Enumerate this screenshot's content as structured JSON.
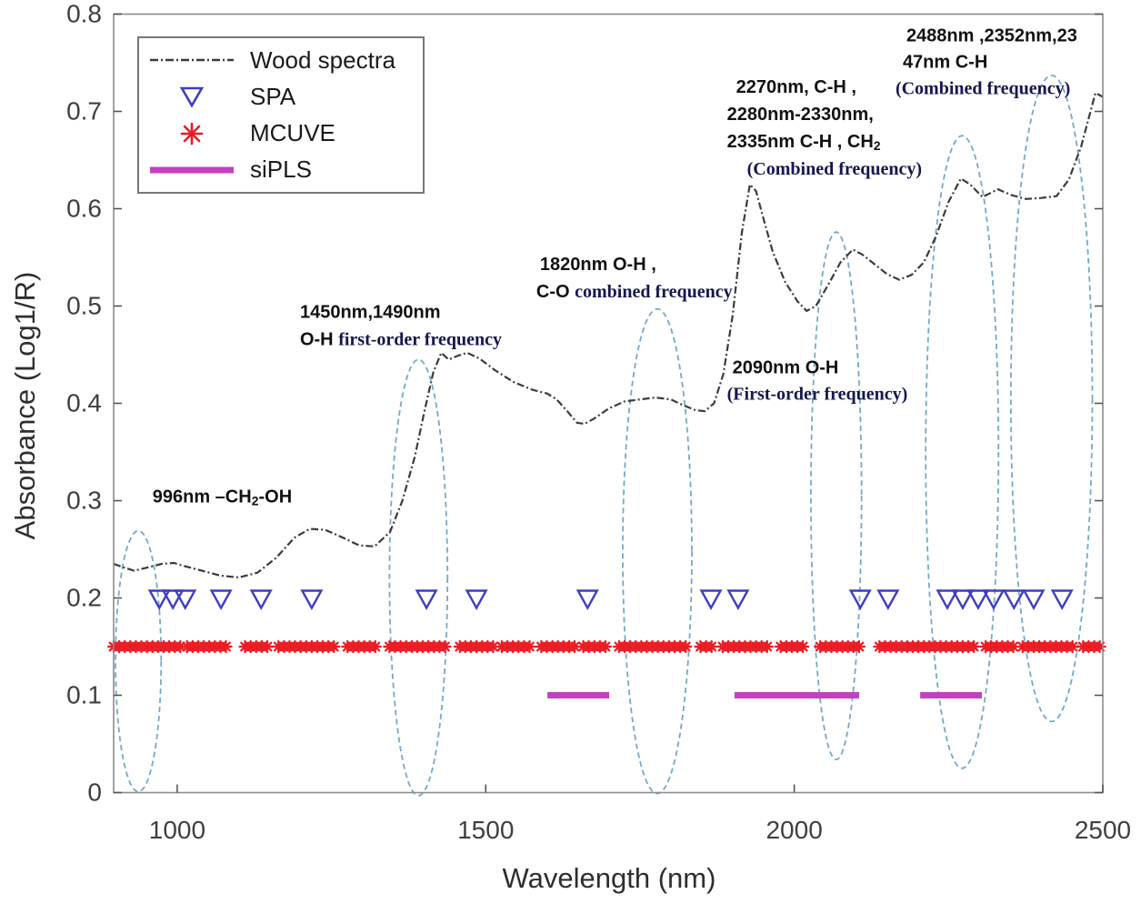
{
  "chart_data": {
    "type": "line",
    "title": "",
    "xlabel": "Wavelength (nm)",
    "ylabel": "Absorbance (Log1/R)",
    "xlim": [
      897,
      2500
    ],
    "ylim": [
      0,
      0.8
    ],
    "xticks": [
      "1000",
      "1500",
      "2000",
      "2500"
    ],
    "yticks": [
      "0",
      "0.1",
      "0.2",
      "0.3",
      "0.4",
      "0.5",
      "0.6",
      "0.7",
      "0.8"
    ],
    "grid": false,
    "legend_position": "top-left",
    "axis_color": "#8c8c8c",
    "tick_label_color": "#3f3f3f",
    "series": [
      {
        "name": "Wood spectra",
        "kind": "line",
        "line_style": "dash-dot",
        "color": "#3b3b3b",
        "points": [
          [
            897,
            0.235
          ],
          [
            915,
            0.231
          ],
          [
            930,
            0.228
          ],
          [
            950,
            0.231
          ],
          [
            975,
            0.235
          ],
          [
            995,
            0.236
          ],
          [
            1010,
            0.233
          ],
          [
            1040,
            0.228
          ],
          [
            1070,
            0.223
          ],
          [
            1100,
            0.221
          ],
          [
            1130,
            0.226
          ],
          [
            1160,
            0.241
          ],
          [
            1190,
            0.262
          ],
          [
            1215,
            0.271
          ],
          [
            1240,
            0.27
          ],
          [
            1265,
            0.263
          ],
          [
            1295,
            0.254
          ],
          [
            1320,
            0.253
          ],
          [
            1345,
            0.268
          ],
          [
            1365,
            0.3
          ],
          [
            1385,
            0.345
          ],
          [
            1400,
            0.39
          ],
          [
            1415,
            0.432
          ],
          [
            1428,
            0.452
          ],
          [
            1440,
            0.445
          ],
          [
            1455,
            0.449
          ],
          [
            1470,
            0.452
          ],
          [
            1490,
            0.446
          ],
          [
            1515,
            0.434
          ],
          [
            1545,
            0.422
          ],
          [
            1575,
            0.414
          ],
          [
            1600,
            0.41
          ],
          [
            1615,
            0.404
          ],
          [
            1632,
            0.392
          ],
          [
            1648,
            0.38
          ],
          [
            1660,
            0.379
          ],
          [
            1675,
            0.384
          ],
          [
            1700,
            0.395
          ],
          [
            1725,
            0.402
          ],
          [
            1750,
            0.404
          ],
          [
            1775,
            0.406
          ],
          [
            1800,
            0.404
          ],
          [
            1820,
            0.398
          ],
          [
            1840,
            0.393
          ],
          [
            1855,
            0.392
          ],
          [
            1870,
            0.4
          ],
          [
            1885,
            0.43
          ],
          [
            1900,
            0.49
          ],
          [
            1915,
            0.575
          ],
          [
            1928,
            0.625
          ],
          [
            1938,
            0.618
          ],
          [
            1950,
            0.59
          ],
          [
            1965,
            0.556
          ],
          [
            1985,
            0.525
          ],
          [
            2005,
            0.505
          ],
          [
            2020,
            0.495
          ],
          [
            2035,
            0.5
          ],
          [
            2055,
            0.522
          ],
          [
            2075,
            0.545
          ],
          [
            2095,
            0.558
          ],
          [
            2110,
            0.553
          ],
          [
            2130,
            0.543
          ],
          [
            2150,
            0.533
          ],
          [
            2170,
            0.527
          ],
          [
            2190,
            0.532
          ],
          [
            2210,
            0.545
          ],
          [
            2230,
            0.572
          ],
          [
            2250,
            0.607
          ],
          [
            2270,
            0.631
          ],
          [
            2285,
            0.625
          ],
          [
            2305,
            0.612
          ],
          [
            2330,
            0.62
          ],
          [
            2352,
            0.614
          ],
          [
            2375,
            0.61
          ],
          [
            2400,
            0.611
          ],
          [
            2425,
            0.613
          ],
          [
            2445,
            0.63
          ],
          [
            2465,
            0.664
          ],
          [
            2488,
            0.719
          ],
          [
            2500,
            0.715
          ]
        ]
      },
      {
        "name": "SPA",
        "kind": "triangle-markers",
        "color": "#3e3ec1",
        "marker_y": 0.2,
        "x_values": [
          971,
          993,
          1013,
          1071,
          1136,
          1218,
          1404,
          1485,
          1665,
          1865,
          1909,
          2107,
          2152,
          2248,
          2273,
          2298,
          2323,
          2356,
          2388,
          2434
        ]
      },
      {
        "name": "MCUVE",
        "kind": "asterisk-band",
        "color": "#ea1c24",
        "band_y": 0.15,
        "segments_nm": [
          [
            897,
            1008
          ],
          [
            1016,
            1086
          ],
          [
            1110,
            1154
          ],
          [
            1164,
            1260
          ],
          [
            1276,
            1324
          ],
          [
            1344,
            1436
          ],
          [
            1458,
            1512
          ],
          [
            1526,
            1574
          ],
          [
            1590,
            1644
          ],
          [
            1658,
            1702
          ],
          [
            1716,
            1824
          ],
          [
            1848,
            1872
          ],
          [
            1884,
            1962
          ],
          [
            1978,
            2016
          ],
          [
            2042,
            2112
          ],
          [
            2138,
            2292
          ],
          [
            2310,
            2356
          ],
          [
            2370,
            2454
          ],
          [
            2468,
            2500
          ]
        ]
      },
      {
        "name": "siPLS",
        "kind": "thick-segments",
        "color": "#c241be",
        "band_y": 0.1,
        "segments_nm": [
          [
            1600,
            1700
          ],
          [
            1903,
            2105
          ],
          [
            2204,
            2304
          ]
        ]
      }
    ],
    "highlight_ellipses": {
      "color": "#74a9c6",
      "style": "dashed",
      "items": [
        {
          "cx_nm": 937,
          "cy_abs": 0.135,
          "rx_nm": 37,
          "ry_abs": 0.134
        },
        {
          "cx_nm": 1391,
          "cy_abs": 0.221,
          "rx_nm": 47,
          "ry_abs": 0.224
        },
        {
          "cx_nm": 1778,
          "cy_abs": 0.248,
          "rx_nm": 56,
          "ry_abs": 0.249
        },
        {
          "cx_nm": 2068,
          "cy_abs": 0.305,
          "rx_nm": 41,
          "ry_abs": 0.271
        },
        {
          "cx_nm": 2272,
          "cy_abs": 0.35,
          "rx_nm": 59,
          "ry_abs": 0.325
        },
        {
          "cx_nm": 2417,
          "cy_abs": 0.405,
          "rx_nm": 66,
          "ry_abs": 0.332
        }
      ]
    },
    "annotations": {
      "black_color": "#111111",
      "navy_color": "#16164f",
      "font_size": 20,
      "items": [
        {
          "x_nm": 960,
          "y_abs": 0.313,
          "line_h": 27,
          "lines": [
            {
              "dx": 0,
              "runs": [
                {
                  "t": "996nm –CH",
                  "s": "black"
                },
                {
                  "t": "2",
                  "s": "black",
                  "sub": true
                },
                {
                  "t": "-OH",
                  "s": "black"
                }
              ]
            }
          ]
        },
        {
          "x_nm": 1199,
          "y_abs": 0.503,
          "line_h": 30,
          "lines": [
            {
              "dx": 0,
              "runs": [
                {
                  "t": "1450nm,1490nm",
                  "s": "black"
                }
              ]
            },
            {
              "dx": 0,
              "runs": [
                {
                  "t": "O-H ",
                  "s": "black"
                },
                {
                  "t": "first-order frequency",
                  "s": "navy"
                }
              ]
            }
          ]
        },
        {
          "x_nm": 1582,
          "y_abs": 0.552,
          "line_h": 30,
          "lines": [
            {
              "dx": 4,
              "runs": [
                {
                  "t": "1820nm O-H ,",
                  "s": "black"
                }
              ]
            },
            {
              "dx": 0,
              "runs": [
                {
                  "t": "C-O ",
                  "s": "black"
                },
                {
                  "t": "combined frequency",
                  "s": "navy"
                }
              ]
            }
          ]
        },
        {
          "x_nm": 1891,
          "y_abs": 0.446,
          "line_h": 29,
          "lines": [
            {
              "dx": 6,
              "runs": [
                {
                  "t": "2090nm O-H",
                  "s": "black"
                }
              ]
            },
            {
              "dx": 0,
              "runs": [
                {
                  "t": "(First-order frequency)",
                  "s": "navy"
                }
              ]
            }
          ]
        },
        {
          "x_nm": 1891,
          "y_abs": 0.734,
          "line_h": 30,
          "lines": [
            {
              "dx": 10,
              "runs": [
                {
                  "t": "2270nm, C-H ,",
                  "s": "black"
                }
              ]
            },
            {
              "dx": 0,
              "runs": [
                {
                  "t": "2280nm-2330nm,",
                  "s": "black"
                }
              ]
            },
            {
              "dx": 0,
              "runs": [
                {
                  "t": "2335nm C-H ,  CH",
                  "s": "black"
                },
                {
                  "t": "2",
                  "s": "black",
                  "sub": true
                }
              ]
            },
            {
              "dx": 22,
              "runs": [
                {
                  "t": "(Combined frequency)",
                  "s": "navy"
                }
              ]
            }
          ]
        },
        {
          "x_nm": 2164,
          "y_abs": 0.787,
          "line_h": 29,
          "lines": [
            {
              "dx": 12,
              "runs": [
                {
                  "t": "2488nm ,2352nm,23",
                  "s": "black"
                }
              ]
            },
            {
              "dx": 8,
              "runs": [
                {
                  "t": "47nm C-H",
                  "s": "black"
                }
              ]
            },
            {
              "dx": 0,
              "runs": [
                {
                  "t": "(Combined frequency)",
                  "s": "navy"
                }
              ]
            }
          ]
        }
      ]
    }
  }
}
